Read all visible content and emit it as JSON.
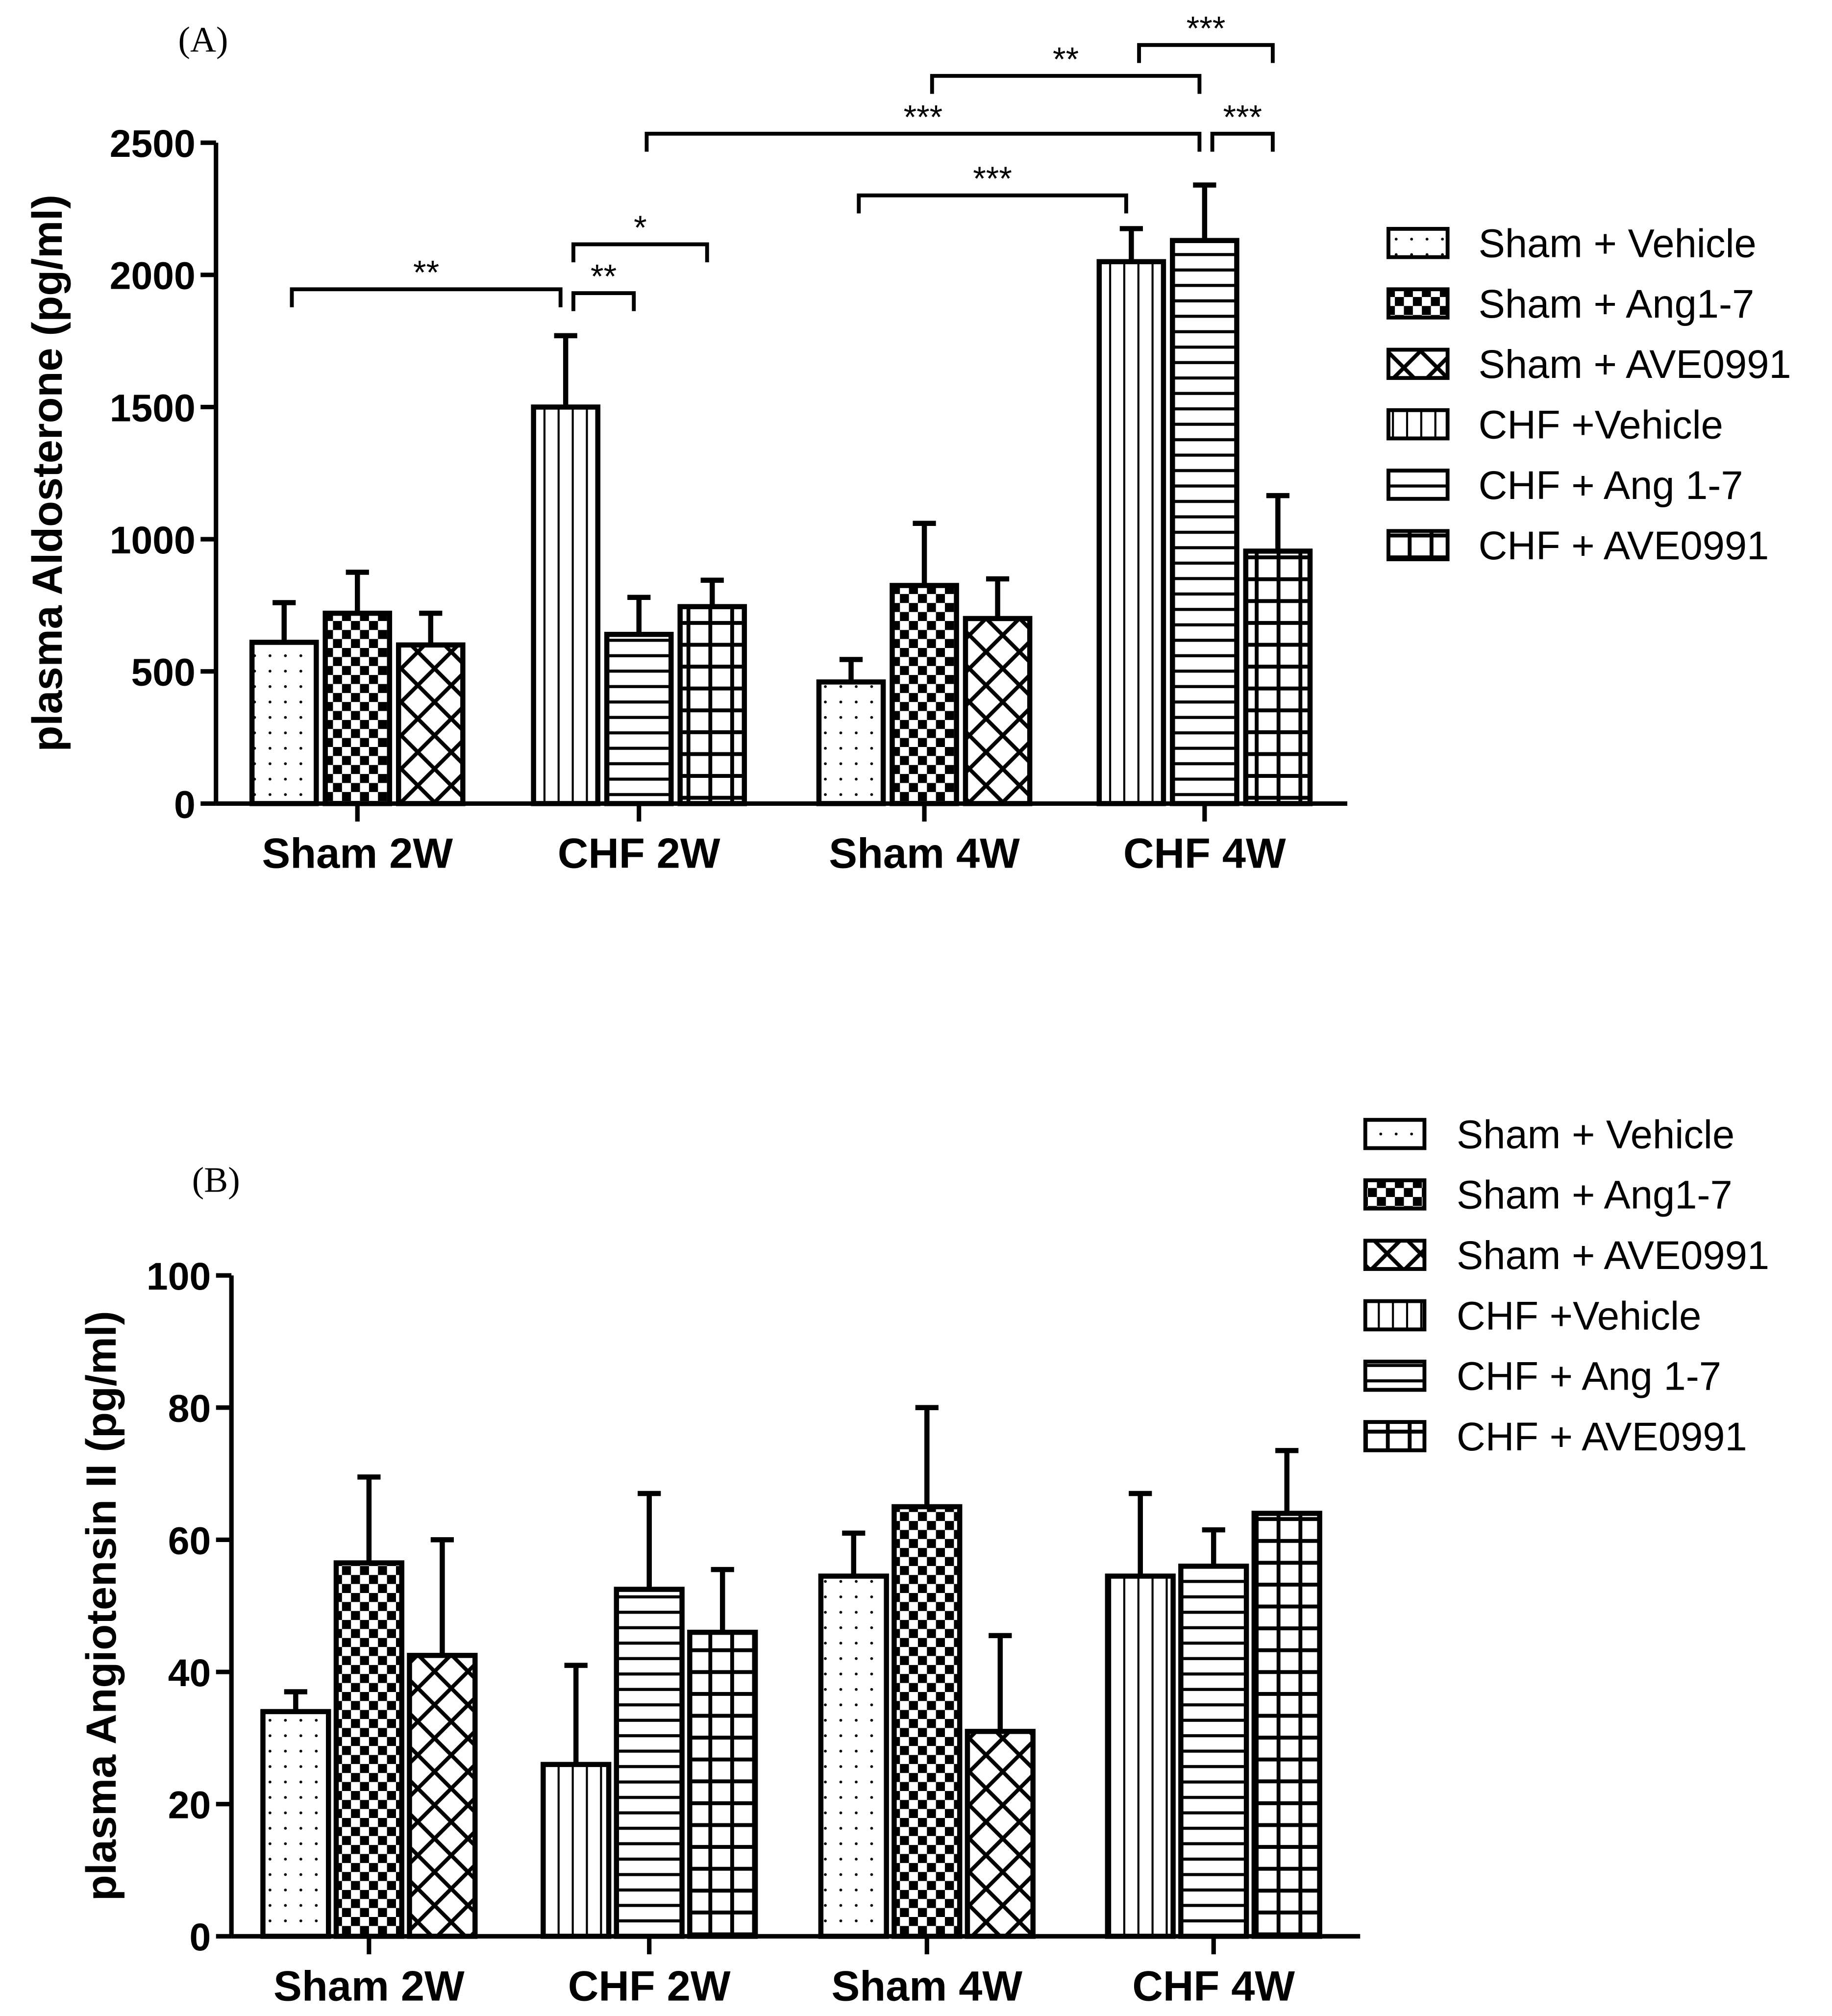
{
  "colors": {
    "ink": "#000000",
    "background": "#ffffff"
  },
  "legend": [
    "Sham + Vehicle",
    "Sham + Ang1-7",
    "Sham + AVE0991",
    "CHF +Vehicle",
    "CHF + Ang 1-7",
    "CHF + AVE0991"
  ],
  "patterns": [
    "dots",
    "checker",
    "crosshatch",
    "vertical-lines",
    "horizontal-lines",
    "grid"
  ],
  "chart_data": [
    {
      "panel_label": "(A)",
      "type": "bar",
      "ylabel": "plasma Aldosterone (pg/ml)",
      "ylim": [
        0,
        2500
      ],
      "yticks": [
        0,
        500,
        1000,
        1500,
        2000,
        2500
      ],
      "categories": [
        "Sham 2W",
        "CHF 2W",
        "Sham 4W",
        "CHF 4W"
      ],
      "series_per_group": [
        [
          0,
          1,
          2
        ],
        [
          3,
          4,
          5
        ],
        [
          0,
          1,
          2
        ],
        [
          3,
          4,
          5
        ]
      ],
      "values": [
        [
          610,
          720,
          600
        ],
        [
          1500,
          640,
          745
        ],
        [
          460,
          825,
          700
        ],
        [
          2050,
          2130,
          955
        ]
      ],
      "error_upper": [
        [
          760,
          875,
          720
        ],
        [
          1770,
          780,
          845
        ],
        [
          545,
          1060,
          850
        ],
        [
          2175,
          2340,
          1165
        ]
      ],
      "significance": [
        {
          "from": [
            0,
            0
          ],
          "to": [
            1,
            0
          ],
          "label": "**"
        },
        {
          "from": [
            1,
            0
          ],
          "to": [
            1,
            1
          ],
          "label": "**"
        },
        {
          "from": [
            1,
            0
          ],
          "to": [
            1,
            2
          ],
          "label": "*"
        },
        {
          "from": [
            2,
            0
          ],
          "to": [
            3,
            0
          ],
          "label": "***"
        },
        {
          "from": [
            1,
            1
          ],
          "to": [
            3,
            1
          ],
          "label": "***"
        },
        {
          "from": [
            3,
            1
          ],
          "to": [
            3,
            2
          ],
          "label": "***"
        },
        {
          "from": [
            2,
            1
          ],
          "to": [
            3,
            1
          ],
          "label": "**"
        },
        {
          "from": [
            3,
            0
          ],
          "to": [
            3,
            2
          ],
          "label": "***"
        }
      ],
      "legend_position": "right"
    },
    {
      "panel_label": "(B)",
      "type": "bar",
      "ylabel": "plasma Angiotensin II (pg/ml)",
      "ylim": [
        0,
        100
      ],
      "yticks": [
        0,
        20,
        40,
        60,
        80,
        100
      ],
      "categories": [
        "Sham 2W",
        "CHF 2W",
        "Sham 4W",
        "CHF 4W"
      ],
      "series_per_group": [
        [
          0,
          1,
          2
        ],
        [
          3,
          4,
          5
        ],
        [
          0,
          1,
          2
        ],
        [
          3,
          4,
          5
        ]
      ],
      "values": [
        [
          34,
          56.5,
          42.5
        ],
        [
          26,
          52.5,
          46
        ],
        [
          54.5,
          65,
          31
        ],
        [
          54.5,
          56,
          64
        ]
      ],
      "error_upper": [
        [
          37,
          69.5,
          60
        ],
        [
          41,
          67,
          55.5
        ],
        [
          61,
          80,
          45.5
        ],
        [
          67,
          61.5,
          73.5
        ]
      ],
      "significance": [],
      "legend_position": "top-right"
    }
  ]
}
